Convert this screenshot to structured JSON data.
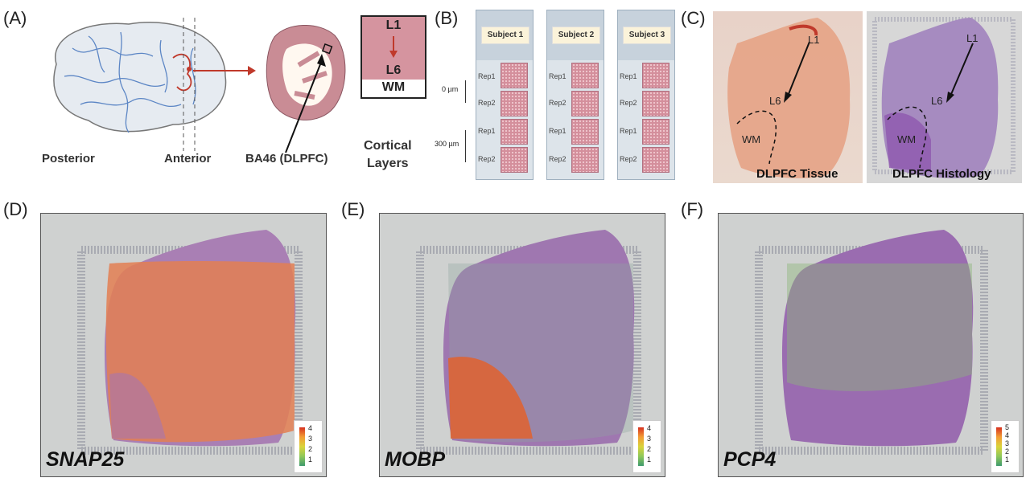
{
  "panel_labels": {
    "a": "(A)",
    "b": "(B)",
    "c": "(C)",
    "d": "(D)",
    "e": "(E)",
    "f": "(F)"
  },
  "panel_a": {
    "posterior": "Posterior",
    "anterior": "Anterior",
    "region": "BA46 (DLPFC)",
    "cortical_layers": "Cortical\nLayers",
    "layer_top": "L1",
    "layer_bottom": "L6",
    "white_matter": "WM"
  },
  "panel_b": {
    "subjects": [
      "Subject 1",
      "Subject 2",
      "Subject 3"
    ],
    "reps": [
      "Rep1",
      "Rep2",
      "Rep1",
      "Rep2"
    ],
    "spacing_top": "0 µm",
    "spacing_bottom": "300 µm"
  },
  "panel_c": {
    "tissue_caption": "DLPFC Tissue",
    "histology_caption": "DLPFC Histology",
    "l1": "L1",
    "l6": "L6",
    "wm": "WM"
  },
  "spatial_panels": [
    {
      "gene": "SNAP25",
      "legend": [
        "4",
        "3",
        "2",
        "1"
      ]
    },
    {
      "gene": "MOBP",
      "legend": [
        "4",
        "3",
        "2",
        "1"
      ]
    },
    {
      "gene": "PCP4",
      "legend": [
        "5",
        "4",
        "3",
        "2",
        "1"
      ]
    }
  ],
  "colors": {
    "brain_fill": "#e7ebf0",
    "tissue_pink": "#d5949f",
    "histology_purple": "#9a72ad",
    "arrow_red": "#c0392b"
  }
}
